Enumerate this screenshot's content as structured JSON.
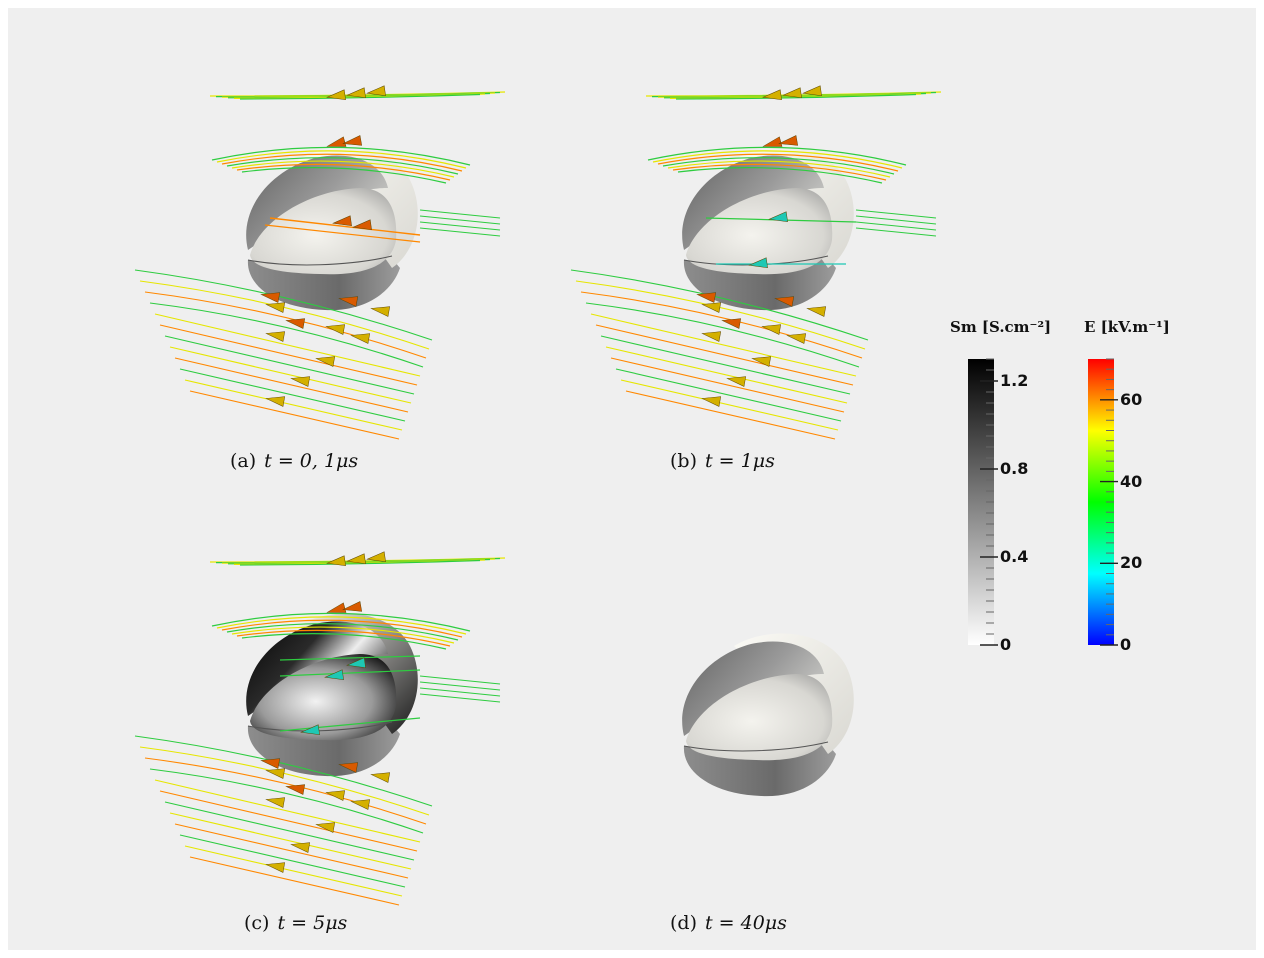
{
  "panels": [
    {
      "id": "a",
      "label": "(a)",
      "caption": "t = 0, 1μs",
      "shading": "light",
      "has_streamlines": true,
      "streamline_variant": "a"
    },
    {
      "id": "b",
      "label": "(b)",
      "caption": "t = 1μs",
      "shading": "light",
      "has_streamlines": true,
      "streamline_variant": "b"
    },
    {
      "id": "c",
      "label": "(c)",
      "caption": "t = 5μs",
      "shading": "dark",
      "has_streamlines": true,
      "streamline_variant": "c"
    },
    {
      "id": "d",
      "label": "(d)",
      "caption": "t = 40μs",
      "shading": "light",
      "has_streamlines": false,
      "streamline_variant": "none"
    }
  ],
  "legends": {
    "sm": {
      "title": "Sm [S.cm⁻²]",
      "ticks": [
        "1.2",
        "0.8",
        "0.4",
        "0"
      ],
      "tick_values": [
        1.2,
        0.8,
        0.4,
        0
      ],
      "range": [
        0,
        1.3
      ],
      "colormap": [
        "#ffffff",
        "#000000"
      ]
    },
    "e": {
      "title": "E [kV.m⁻¹]",
      "ticks": [
        "60",
        "40",
        "20",
        "0"
      ],
      "tick_values": [
        60,
        40,
        20,
        0
      ],
      "range": [
        0,
        70
      ],
      "colormap": [
        "#0000ff",
        "#00ffff",
        "#00ff00",
        "#ffff00",
        "#ff0000"
      ]
    }
  },
  "colors": {
    "background": "#efefef",
    "streamline_green": "#2ecc40",
    "streamline_yellow": "#e6e600",
    "streamline_orange": "#ff8800",
    "arrow_yellow": "#d4b000",
    "arrow_orange": "#d95a00",
    "arrow_cyan": "#1ec8b4"
  }
}
